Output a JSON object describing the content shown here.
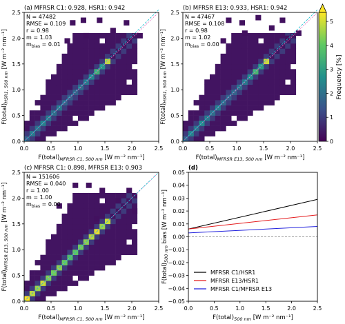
{
  "figure": {
    "xlabel_a": "F(total)",
    "xlabel_a_sub": "MFRSR C1, 500 nm",
    "xlabel_b_sub": "MFRSR E13, 500 nm",
    "xlabel_unit": "[W m⁻² nm⁻¹]",
    "colorbar_label": "Frequency [%]",
    "colorbar_ticks": [
      "0",
      "1",
      "2",
      "3",
      "4",
      "5"
    ],
    "colorbar_colors": [
      "#440154",
      "#3b528b",
      "#21918c",
      "#5ec962",
      "#fde725"
    ]
  },
  "chart_data": [
    {
      "type": "heatmap",
      "panel": "a",
      "title": "(a) MFRSR C1: 0.928, HSR1: 0.942",
      "xlabel": "F(total)MFRSR C1, 500 nm [W m⁻² nm⁻¹]",
      "ylabel": "F(total)HSR1, 500 nm [W m⁻² nm⁻¹]",
      "xlim": [
        0,
        2.5
      ],
      "ylim": [
        0,
        2.5
      ],
      "xticks": [
        "0.0",
        "0.5",
        "1.0",
        "1.5",
        "2.0",
        "2.5"
      ],
      "yticks": [
        "0.0",
        "0.5",
        "1.0",
        "1.5",
        "2.0",
        "2.5"
      ],
      "stats": [
        "N = 47482",
        "RMSE = 0.109",
        "r = 0.98",
        "m = 1.03",
        "m_bias = 0.01"
      ],
      "diagonal_freq": [
        1.5,
        2.0,
        1.8,
        2.2,
        2.0,
        1.8,
        2.0,
        1.6,
        1.5,
        1.6,
        1.8,
        2.0,
        2.3,
        3.2,
        2.6,
        4.5
      ],
      "outliers": [
        [
          0.85,
          2.25
        ],
        [
          1.05,
          2.3
        ],
        [
          1.35,
          2.3
        ],
        [
          1.1,
          2.0
        ],
        [
          0.75,
          1.9
        ],
        [
          1.6,
          2.1
        ],
        [
          1.9,
          1.9
        ],
        [
          2.1,
          2.0
        ],
        [
          1.85,
          2.25
        ]
      ]
    },
    {
      "type": "heatmap",
      "panel": "b",
      "title": "(b) MFRSR E13: 0.933, HSR1: 0.942",
      "xlabel": "F(total)MFRSR E13, 500 nm [W m⁻² nm⁻¹]",
      "ylabel": "F(total)HSR1, 500 nm [W m⁻² nm⁻¹]",
      "xlim": [
        0,
        2.5
      ],
      "ylim": [
        0,
        2.5
      ],
      "xticks": [
        "0.0",
        "0.5",
        "1.0",
        "1.5",
        "2.0",
        "2.5"
      ],
      "yticks": [
        "0.0",
        "0.5",
        "1.0",
        "1.5",
        "2.0",
        "2.5"
      ],
      "stats": [
        "N = 47467",
        "RMSE = 0.108",
        "r = 0.98",
        "m = 1.02",
        "m_bias = 0.00"
      ],
      "diagonal_freq": [
        1.5,
        2.2,
        1.9,
        2.4,
        2.0,
        1.8,
        2.1,
        1.7,
        1.5,
        1.6,
        1.8,
        2.0,
        2.4,
        3.3,
        2.7,
        4.6
      ],
      "outliers": [
        [
          0.8,
          2.3
        ],
        [
          1.05,
          2.25
        ],
        [
          1.35,
          2.35
        ],
        [
          1.1,
          2.05
        ],
        [
          0.7,
          1.9
        ],
        [
          1.6,
          2.15
        ],
        [
          1.9,
          1.95
        ],
        [
          2.1,
          2.05
        ],
        [
          1.8,
          2.3
        ]
      ]
    },
    {
      "type": "heatmap",
      "panel": "c",
      "title": "(c) MFRSR C1: 0.898, MFRSR E13: 0.903",
      "xlabel": "F(total)MFRSR C1, 500 nm [W m⁻² nm⁻¹]",
      "ylabel": "F(total)MFRSR E13, 500 nm [W m⁻² nm⁻¹]",
      "xlim": [
        0,
        2.5
      ],
      "ylim": [
        0,
        2.5
      ],
      "xticks": [
        "0.0",
        "0.5",
        "1.0",
        "1.5",
        "2.0",
        "2.5"
      ],
      "yticks": [
        "0.0",
        "0.5",
        "1.0",
        "1.5",
        "2.0",
        "2.5"
      ],
      "stats": [
        "N = 151606",
        "RMSE = 0.040",
        "r = 1.00",
        "m = 1.00",
        "m_bias = 0.00"
      ],
      "diagonal_freq": [
        5.0,
        4.5,
        4.2,
        4.6,
        4.0,
        3.9,
        4.1,
        3.8,
        3.5,
        3.7,
        3.9,
        4.1,
        4.4,
        4.8,
        4.2,
        4.6
      ],
      "outliers": [
        [
          0.9,
          2.2
        ],
        [
          1.15,
          2.2
        ],
        [
          1.4,
          2.1
        ],
        [
          1.7,
          1.9
        ],
        [
          2.0,
          1.7
        ],
        [
          0.6,
          1.8
        ],
        [
          1.3,
          1.55
        ],
        [
          1.9,
          2.1
        ]
      ]
    },
    {
      "type": "line",
      "panel": "d",
      "title": "(d)",
      "xlabel": "F(total)500 nm [W m⁻² nm⁻¹]",
      "ylabel": "F(total)500 nm bias [W m⁻² nm⁻¹]",
      "xlim": [
        0,
        2.5
      ],
      "ylim": [
        -0.05,
        0.05
      ],
      "xticks": [
        "0.0",
        "0.5",
        "1.0",
        "1.5",
        "2.0",
        "2.5"
      ],
      "yticks": [
        "−0.05",
        "−0.04",
        "−0.03",
        "−0.02",
        "−0.01",
        "0.00",
        "0.01",
        "0.02",
        "0.03",
        "0.04",
        "0.05"
      ],
      "series": [
        {
          "name": "MFRSR C1/HSR1",
          "color": "#000000",
          "x": [
            0,
            2.5
          ],
          "y": [
            0.006,
            0.029
          ]
        },
        {
          "name": "MFRSR E13/HSR1",
          "color": "#e41a1c",
          "x": [
            0,
            2.5
          ],
          "y": [
            0.006,
            0.017
          ]
        },
        {
          "name": "MFRSR C1/MFRSR E13",
          "color": "#1f1fdd",
          "x": [
            0,
            2.5
          ],
          "y": [
            0.003,
            0.008
          ]
        }
      ],
      "reference_line": {
        "y": 0.0,
        "style": "dashed"
      },
      "legend_position": "lower-left"
    }
  ]
}
